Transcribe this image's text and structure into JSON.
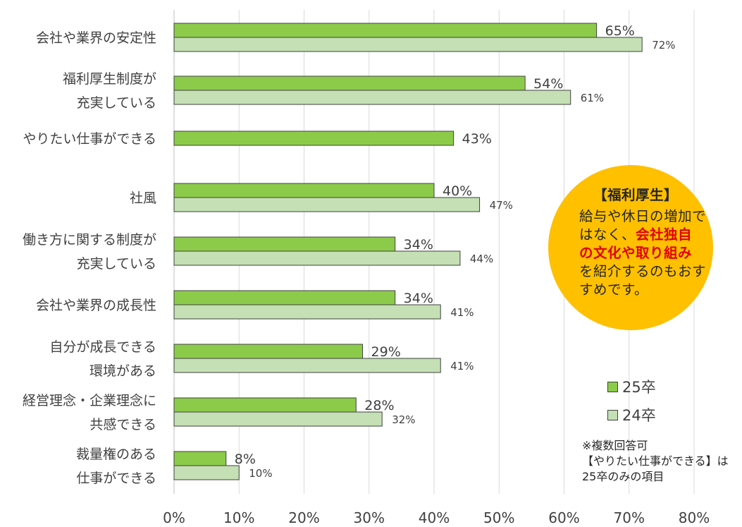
{
  "chart_data": {
    "type": "bar",
    "orientation": "horizontal",
    "categories": [
      [
        "会社や業界の安定性"
      ],
      [
        "福利厚生制度が",
        "充実している"
      ],
      [
        "やりたい仕事ができる"
      ],
      [
        "社風"
      ],
      [
        "働き方に関する制度が",
        "充実している"
      ],
      [
        "会社や業界の成長性"
      ],
      [
        "自分が成長できる",
        "環境がある"
      ],
      [
        "経営理念・企業理念に",
        "共感できる"
      ],
      [
        "裁量権のある",
        "仕事ができる"
      ]
    ],
    "series": [
      {
        "name": "25卒",
        "values": [
          65,
          54,
          43,
          40,
          34,
          34,
          29,
          28,
          8
        ],
        "color": "#8CCB4A"
      },
      {
        "name": "24卒",
        "values": [
          72,
          61,
          null,
          47,
          44,
          41,
          41,
          32,
          10
        ],
        "color": "#C5E0B4"
      }
    ],
    "xlim": [
      0,
      80
    ],
    "xticks": [
      "0%",
      "10%",
      "20%",
      "30%",
      "40%",
      "50%",
      "60%",
      "70%",
      "80%"
    ],
    "value_suffix": "%",
    "grid": true
  },
  "callout": {
    "title": "【福利厚生】",
    "text_a": "給与や休日の増加ではなく、",
    "text_highlight": "会社独自の文化や取り組み",
    "text_b": "を紹介するのもおすすめです。",
    "highlight_color": "#E00000",
    "fill_color": "#FFC000"
  },
  "note": {
    "line1": "※複数回答可",
    "line2": "【やりたい仕事ができる】は",
    "line3": "25卒のみの項目"
  }
}
